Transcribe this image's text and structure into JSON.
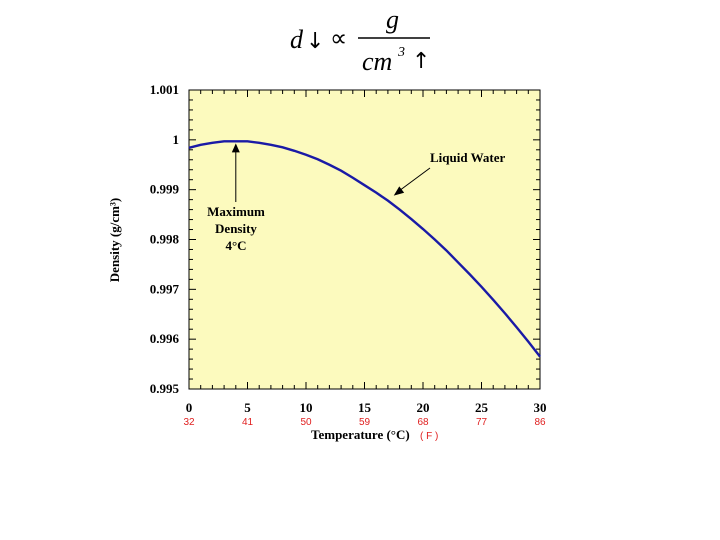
{
  "formula": {
    "lhs": "d",
    "proportional": "∝",
    "numerator": "g",
    "denominator": "cm",
    "exponent": "3",
    "lhs_arrow": "↓",
    "rhs_arrow": "↑"
  },
  "colors": {
    "plot_bg": "#fcfabe",
    "curve": "#1a1aa6",
    "fahrenheit": "#e02020"
  },
  "chart_data": {
    "type": "line",
    "title": "",
    "xlabel": "Temperature (°C)",
    "xlabel_extra": "( F )",
    "ylabel": "Density (g/cm³)",
    "xlim": [
      0,
      30
    ],
    "ylim": [
      0.995,
      1.001
    ],
    "x_ticks": [
      0,
      5,
      10,
      15,
      20,
      25,
      30
    ],
    "x_tick_labels": [
      "0",
      "5",
      "10",
      "15",
      "20",
      "25",
      "30"
    ],
    "fahrenheit_tick_labels": [
      "32",
      "41",
      "50",
      "59",
      "68",
      "77",
      "86"
    ],
    "y_ticks": [
      0.995,
      0.996,
      0.997,
      0.998,
      0.999,
      1.0,
      1.001
    ],
    "y_tick_labels": [
      "0.995",
      "0.996",
      "0.997",
      "0.998",
      "0.999",
      "1",
      "1.001"
    ],
    "series": [
      {
        "name": "Liquid Water",
        "x": [
          0,
          1,
          2,
          3,
          4,
          5,
          6,
          7,
          8,
          9,
          10,
          11,
          12,
          13,
          14,
          15,
          16,
          17,
          18,
          19,
          20,
          21,
          22,
          23,
          24,
          25,
          26,
          27,
          28,
          29,
          30
        ],
        "y": [
          0.99984,
          0.9999,
          0.99994,
          0.99997,
          0.99997,
          0.99997,
          0.99994,
          0.9999,
          0.99985,
          0.99978,
          0.9997,
          0.99961,
          0.9995,
          0.99938,
          0.99924,
          0.99909,
          0.99894,
          0.99878,
          0.9986,
          0.99841,
          0.99821,
          0.998,
          0.99778,
          0.99754,
          0.9973,
          0.99705,
          0.99679,
          0.99652,
          0.99624,
          0.99595,
          0.99565
        ]
      }
    ],
    "annotations": [
      {
        "lines": [
          "Maximum",
          "Density",
          "4°C"
        ],
        "x": 4,
        "y": 0.99997
      },
      {
        "lines": [
          "Liquid Water"
        ],
        "x": 17.5,
        "y": 0.99888
      }
    ]
  }
}
